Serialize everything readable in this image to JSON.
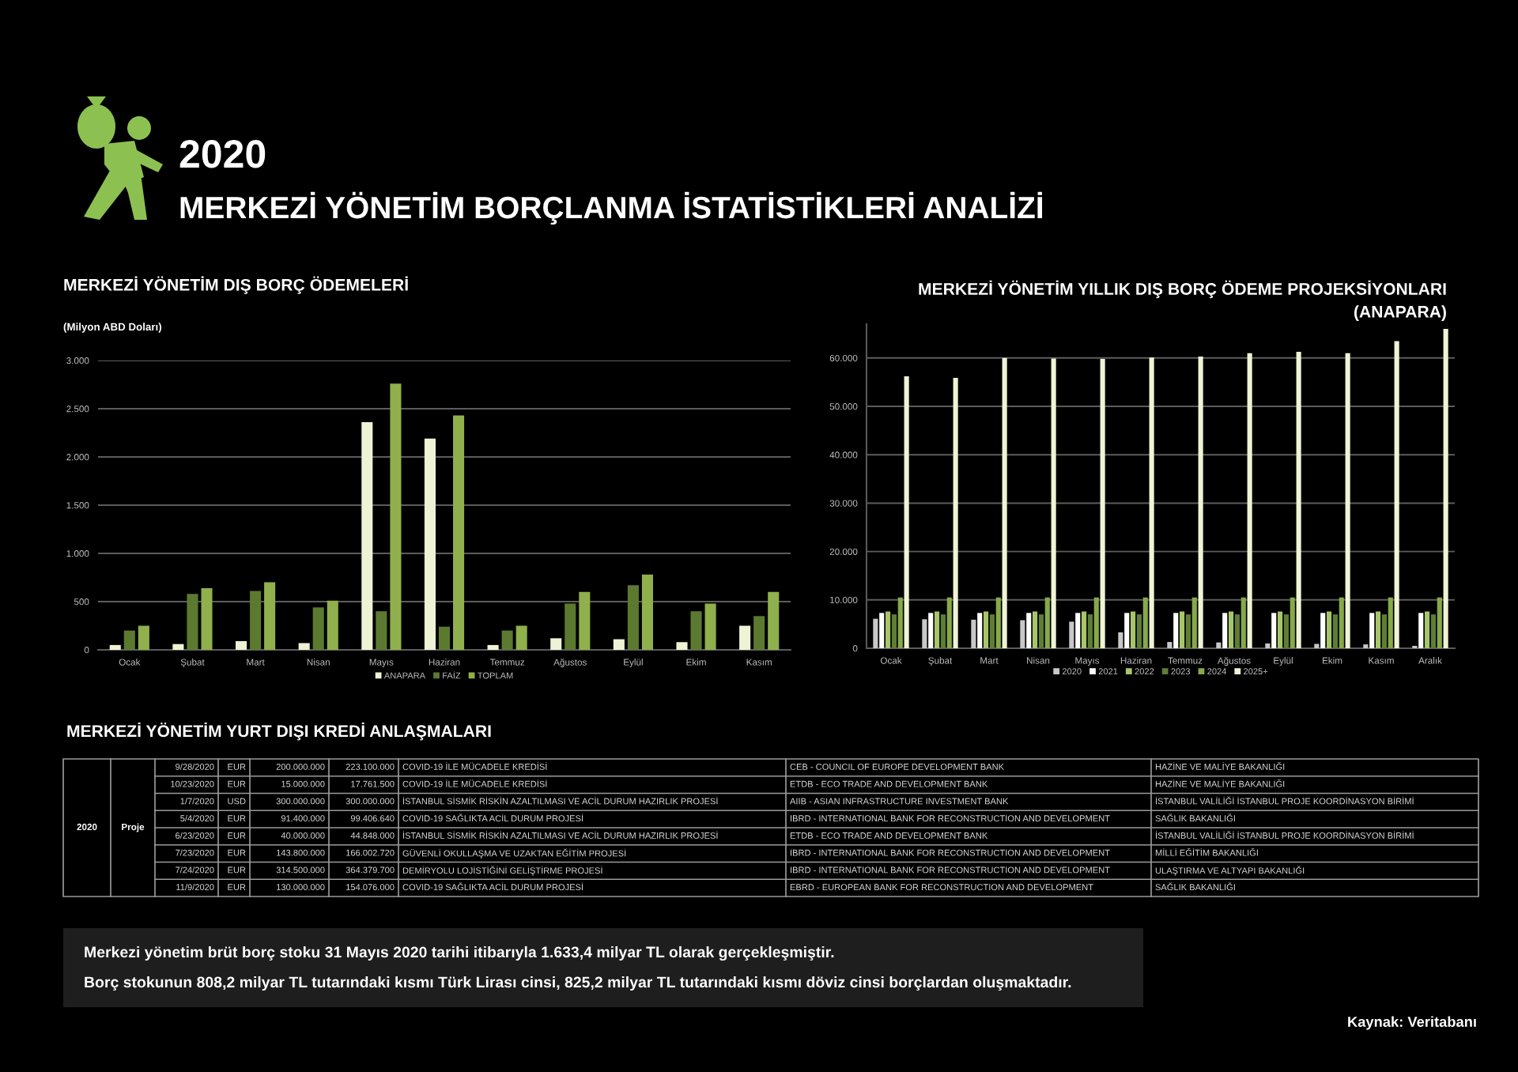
{
  "chart_data": [
    {
      "type": "other",
      "subtitle": "2020",
      "title": "MERKEZİ YÖNETİM BORÇLANMA İSTATİSTİKLERİ ANALİZİ"
    },
    {
      "type": "bar",
      "title": "MERKEZİ YÖNETİM DIŞ BORÇ ÖDEMELERİ",
      "ylabel": "(Milyon ABD Doları)",
      "categories": [
        "Ocak",
        "Şubat",
        "Mart",
        "Nisan",
        "Mayıs",
        "Haziran",
        "Temmuz",
        "Ağustos",
        "Eylül",
        "Ekim",
        "Kasım"
      ],
      "series": [
        {
          "name": "ANAPARA",
          "color": "#eef3d6",
          "values": [
            50,
            60,
            90,
            70,
            2360,
            2190,
            50,
            120,
            110,
            80,
            250
          ]
        },
        {
          "name": "FAİZ",
          "color": "#5b7a30",
          "values": [
            200,
            580,
            610,
            440,
            400,
            240,
            200,
            480,
            670,
            400,
            350
          ]
        },
        {
          "name": "TOPLAM",
          "color": "#8fb04c",
          "values": [
            250,
            640,
            700,
            510,
            2760,
            2430,
            250,
            600,
            780,
            480,
            600
          ]
        }
      ],
      "ylim": [
        0,
        3000
      ],
      "yticks": [
        0,
        500,
        {
          "value": 1000,
          "label": "1.000"
        },
        {
          "value": 1500,
          "label": "1.500"
        },
        {
          "value": 2000,
          "label": "2.000"
        },
        {
          "value": 2500,
          "label": "2.500"
        },
        {
          "value": 3000,
          "label": "3.000"
        }
      ],
      "grid": "y",
      "legend": "bottom"
    },
    {
      "type": "bar",
      "title": "MERKEZİ YÖNETİM YILLIK DIŞ BORÇ ÖDEME PROJEKSİYONLARI\n(ANAPARA)",
      "categories": [
        "Ocak",
        "Şubat",
        "Mart",
        "Nisan",
        "Mayıs",
        "Haziran",
        "Temmuz",
        "Ağustos",
        "Eylül",
        "Ekim",
        "Kasım",
        "Aralık"
      ],
      "series": [
        {
          "name": "2020",
          "color": "#c8c8c8",
          "values": [
            6100,
            6000,
            5900,
            5800,
            5500,
            3300,
            1300,
            1200,
            1000,
            900,
            800,
            500
          ]
        },
        {
          "name": "2021",
          "color": "#ffffff",
          "values": [
            7300,
            7300,
            7300,
            7300,
            7300,
            7300,
            7300,
            7300,
            7300,
            7300,
            7300,
            7300
          ]
        },
        {
          "name": "2022",
          "color": "#a7c66a",
          "values": [
            7600,
            7600,
            7600,
            7600,
            7600,
            7600,
            7600,
            7600,
            7600,
            7600,
            7600,
            7600
          ]
        },
        {
          "name": "2023",
          "color": "#5f7d35",
          "values": [
            7000,
            7000,
            7000,
            7000,
            7000,
            7000,
            7000,
            7000,
            7000,
            7000,
            7000,
            7000
          ]
        },
        {
          "name": "2024",
          "color": "#86a94a",
          "values": [
            10500,
            10500,
            10500,
            10500,
            10500,
            10500,
            10500,
            10500,
            10500,
            10500,
            10500,
            10500
          ]
        },
        {
          "name": "2025+",
          "color": "#f0f4d6",
          "values": [
            56200,
            55900,
            60000,
            59900,
            59800,
            60100,
            60300,
            61000,
            61300,
            61000,
            63500,
            66000
          ]
        }
      ],
      "ylim": [
        0,
        67000
      ],
      "yticks": [
        0,
        {
          "value": 10000,
          "label": "10.000"
        },
        {
          "value": 20000,
          "label": "20.000"
        },
        {
          "value": 30000,
          "label": "30.000"
        },
        {
          "value": 40000,
          "label": "40.000"
        },
        {
          "value": 50000,
          "label": "50.000"
        },
        {
          "value": 60000,
          "label": "60.000"
        }
      ],
      "grid": "y",
      "legend": "bottom"
    },
    {
      "type": "other",
      "title": "MERKEZİ YÖNETİM YURT DIŞI KREDİ ANLAŞMALARI",
      "annotations": [
        "2020",
        "Proje",
        "9/28/2020",
        "EUR",
        "200.000.000",
        "223.100.000",
        "COVID-19 İLE MÜCADELE KREDİSİ",
        "CEB - COUNCIL OF EUROPE DEVELOPMENT BANK",
        "HAZİNE VE MALİYE BAKANLIĞI",
        "10/23/2020",
        "EUR",
        "15.000.000",
        "17.761.500",
        "COVID-19 İLE MÜCADELE KREDİSİ",
        "ETDB - ECO TRADE AND DEVELOPMENT BANK",
        "HAZİNE VE MALİYE BAKANLIĞI",
        "1/7/2020",
        "USD",
        "300.000.000",
        "300.000.000",
        "İSTANBUL SİSMİK RİSKİN AZALTILMASI VE ACİL DURUM HAZIRLIK PROJESİ",
        "AIIB - ASIAN INFRASTRUCTURE INVESTMENT BANK",
        "İSTANBUL VALİLİĞİ İSTANBUL PROJE KOORDİNASYON BİRİMİ",
        "5/4/2020",
        "EUR",
        "91.400.000",
        "99.406.640",
        "COVID-19 SAĞLIKTA ACİL DURUM PROJESİ",
        "IBRD - INTERNATIONAL BANK FOR RECONSTRUCTION AND DEVELOPMENT",
        "SAĞLIK BAKANLIĞI",
        "6/23/2020",
        "EUR",
        "40.000.000",
        "44.848.000",
        "İSTANBUL SİSMİK RİSKİN AZALTILMASI VE ACİL DURUM HAZIRLIK PROJESİ",
        "ETDB - ECO TRADE AND DEVELOPMENT BANK",
        "İSTANBUL VALİLİĞİ İSTANBUL PROJE KOORDİNASYON BİRİMİ",
        "7/23/2020",
        "EUR",
        "143.800.000",
        "166.002.720",
        "GÜVENLİ OKULLAŞMA VE UZAKTAN EĞİTİM PROJESİ",
        "IBRD - INTERNATIONAL BANK FOR RECONSTRUCTION AND DEVELOPMENT",
        "MİLLİ EĞİTİM BAKANLIĞI",
        "7/24/2020",
        "EUR",
        "314.500.000",
        "364.379.700",
        "DEMİRYOLU LOJİSTİĞİNİ GELİŞTİRME PROJESİ",
        "IBRD - INTERNATIONAL BANK FOR RECONSTRUCTION AND DEVELOPMENT",
        "ULAŞTIRMA VE ALTYAPI BAKANLIĞI",
        "11/9/2020",
        "EUR",
        "130.000.000",
        "154.076.000",
        "COVID-19 SAĞLIKTA ACİL DURUM PROJESİ",
        "EBRD - EUROPEAN BANK FOR RECONSTRUCTION AND DEVELOPMENT",
        "SAĞLIK BAKANLIĞI"
      ]
    },
    {
      "type": "other",
      "annotations": [
        "Merkezi yönetim brüt borç stoku 31 Mayıs 2020 tarihi itibarıyla 1.633,4 milyar TL olarak gerçekleşmiştir.",
        "Borç stokunun 808,2 milyar TL tutarındaki kısmı Türk Lirası cinsi, 825,2 milyar TL tutarındaki kısmı döviz cinsi borçlardan oluşmaktadır.",
        "Kaynak: Veritabanı"
      ]
    }
  ]
}
